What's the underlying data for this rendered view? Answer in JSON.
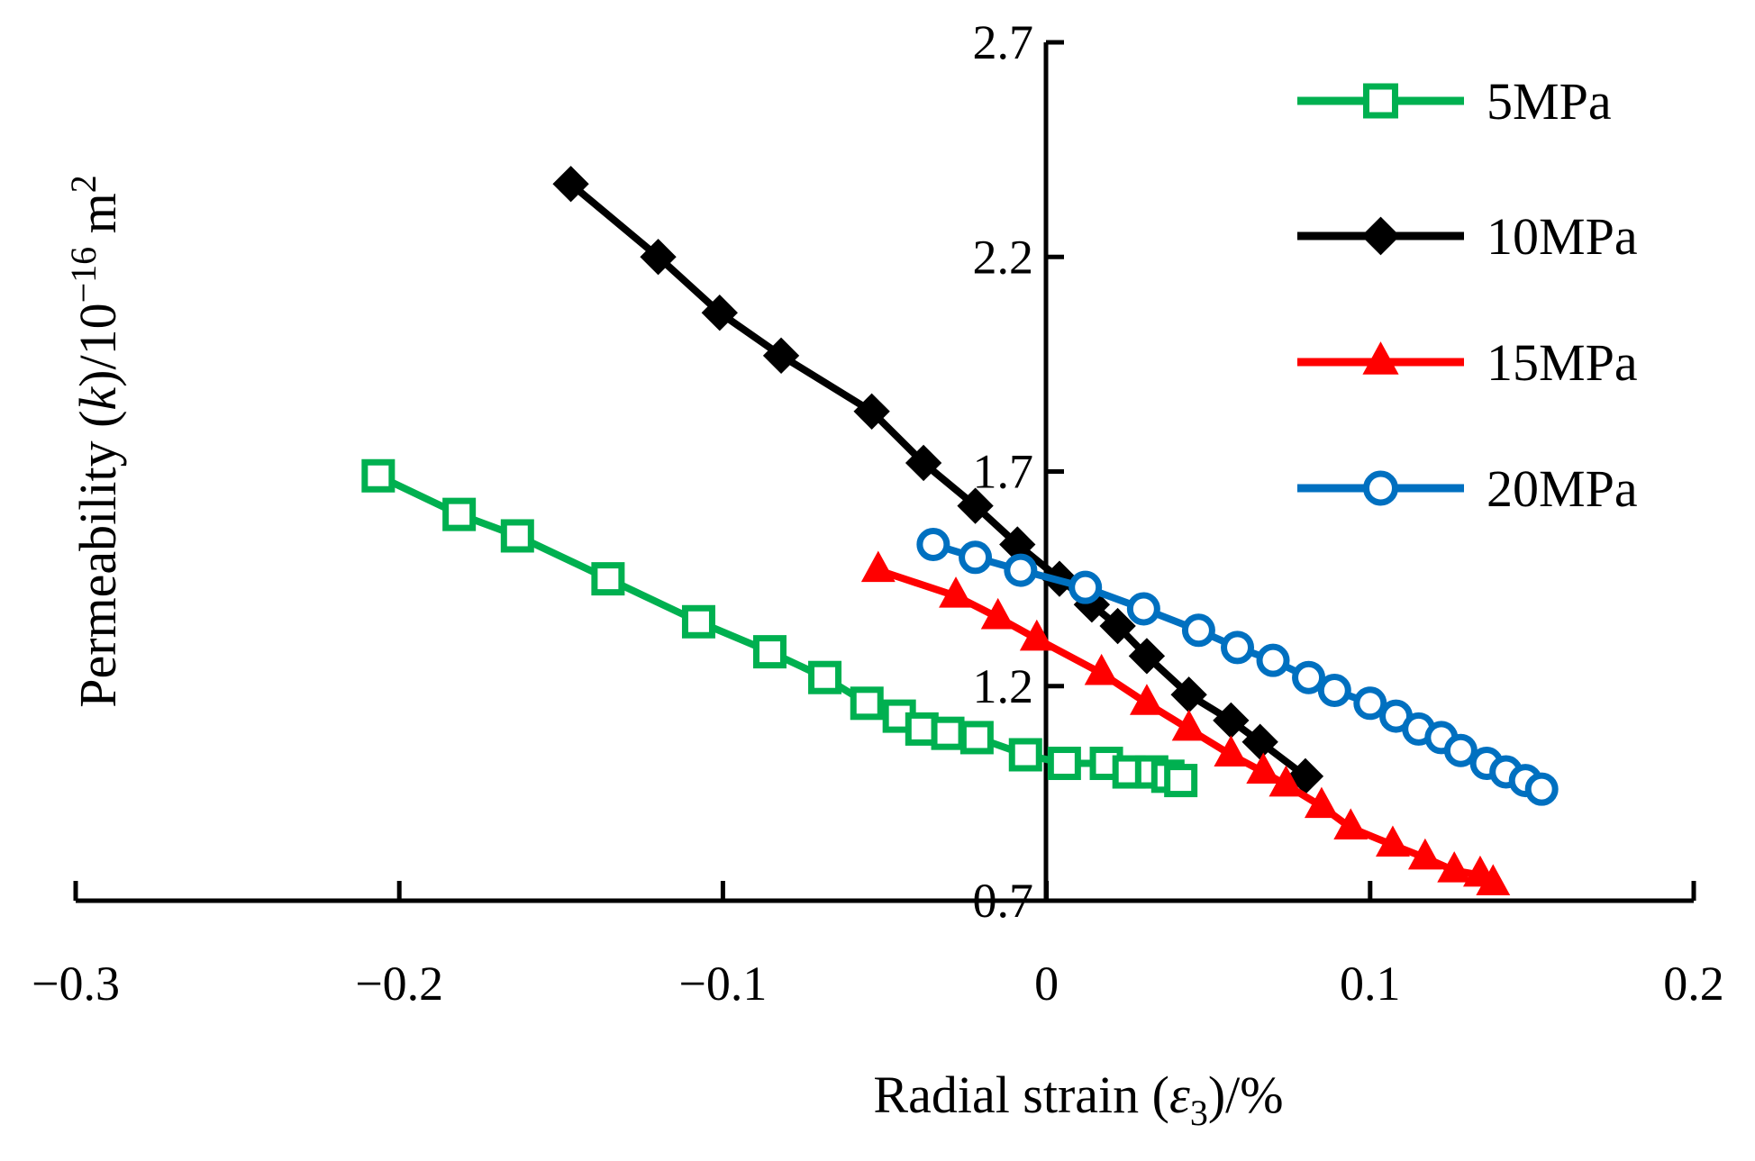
{
  "chart_data": {
    "type": "line",
    "xlabel": {
      "prefix": "Radial strain (",
      "symbol": "ε",
      "subscript": "3",
      "suffix": ")/%"
    },
    "ylabel": {
      "prefix": "Permeability (",
      "symbol": "k",
      "middle": ")/10",
      "exponent": "−16",
      "unit": " m",
      "unit_exp": "2"
    },
    "xlim": [
      -0.3,
      0.2
    ],
    "ylim": [
      0.7,
      2.7
    ],
    "x_tick_labels": [
      "−0.3",
      "−0.2",
      "−0.1",
      "0",
      "0.1",
      "0.2"
    ],
    "y_tick_labels": [
      "0.7",
      "1.2",
      "1.7",
      "2.2",
      "2.7"
    ],
    "legend_position": "top-right",
    "series": [
      {
        "name": "5MPa",
        "color": "#00b050",
        "marker": "square",
        "x": [
          -0.2065,
          -0.1815,
          -0.1635,
          -0.1355,
          -0.1075,
          -0.0855,
          -0.0685,
          -0.0555,
          -0.0455,
          -0.0385,
          -0.0305,
          -0.0215,
          -0.0065,
          0.0055,
          0.0185,
          0.0255,
          0.0325,
          0.0375,
          0.0415
        ],
        "y": [
          1.69,
          1.6,
          1.55,
          1.45,
          1.35,
          1.28,
          1.22,
          1.16,
          1.13,
          1.1,
          1.09,
          1.08,
          1.04,
          1.02,
          1.02,
          1.0,
          1.0,
          0.99,
          0.98
        ]
      },
      {
        "name": "10MPa",
        "color": "#000000",
        "marker": "diamond",
        "x": [
          -0.147,
          -0.12,
          -0.101,
          -0.082,
          -0.054,
          -0.038,
          -0.022,
          -0.009,
          0.004,
          0.014,
          0.022,
          0.031,
          0.044,
          0.057,
          0.066,
          0.08
        ],
        "y": [
          2.37,
          2.2,
          2.07,
          1.97,
          1.84,
          1.72,
          1.62,
          1.53,
          1.45,
          1.39,
          1.34,
          1.27,
          1.18,
          1.12,
          1.07,
          0.99
        ]
      },
      {
        "name": "15MPa",
        "color": "#ff0000",
        "marker": "triangle",
        "x": [
          -0.052,
          -0.028,
          -0.015,
          -0.003,
          0.017,
          0.031,
          0.044,
          0.057,
          0.067,
          0.074,
          0.085,
          0.094,
          0.107,
          0.117,
          0.126,
          0.134,
          0.138
        ],
        "y": [
          1.47,
          1.41,
          1.36,
          1.31,
          1.23,
          1.16,
          1.1,
          1.04,
          1.0,
          0.97,
          0.92,
          0.87,
          0.83,
          0.8,
          0.77,
          0.76,
          0.74
        ]
      },
      {
        "name": "20MPa",
        "color": "#0070c0",
        "marker": "circle",
        "x": [
          -0.035,
          -0.022,
          -0.008,
          0.012,
          0.03,
          0.047,
          0.059,
          0.07,
          0.081,
          0.089,
          0.1,
          0.108,
          0.115,
          0.122,
          0.128,
          0.136,
          0.142,
          0.148,
          0.153
        ],
        "y": [
          1.53,
          1.5,
          1.47,
          1.43,
          1.38,
          1.33,
          1.29,
          1.26,
          1.22,
          1.19,
          1.16,
          1.13,
          1.1,
          1.08,
          1.05,
          1.02,
          1.0,
          0.98,
          0.96
        ]
      }
    ]
  }
}
